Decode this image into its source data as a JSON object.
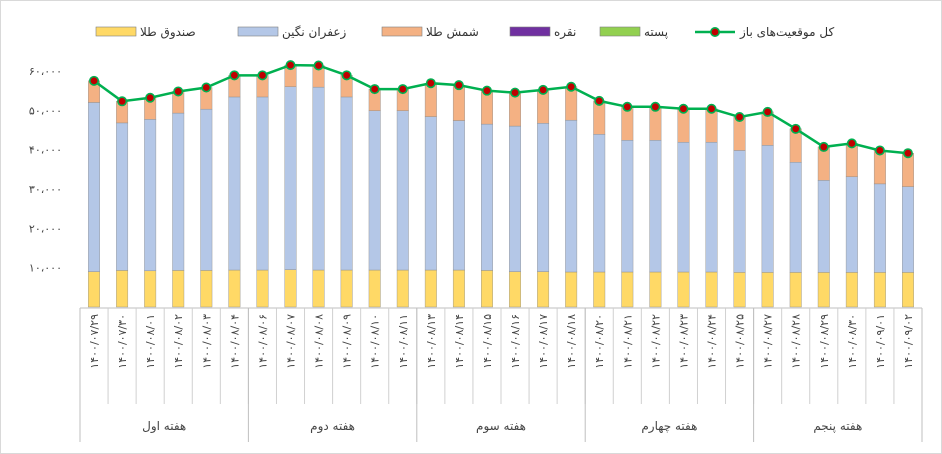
{
  "chart_data": {
    "type": "bar",
    "stacked": true,
    "title": "",
    "xlabel": "",
    "ylabel": "",
    "ylim": [
      0,
      60000
    ],
    "y_ticks": [
      "۱۰،۰۰۰",
      "۲۰،۰۰۰",
      "۳۰،۰۰۰",
      "۴۰،۰۰۰",
      "۵۰،۰۰۰",
      "۶۰،۰۰۰"
    ],
    "legend_position": "top",
    "categories": [
      "۱۴۰۰/۰۷/۲۹",
      "۱۴۰۰/۰۷/۳۰",
      "۱۴۰۰/۰۸/۰۱",
      "۱۴۰۰/۰۸/۰۲",
      "۱۴۰۰/۰۸/۰۳",
      "۱۴۰۰/۰۸/۰۴",
      "۱۴۰۰/۰۸/۰۶",
      "۱۴۰۰/۰۸/۰۷",
      "۱۴۰۰/۰۸/۰۸",
      "۱۴۰۰/۰۸/۰۹",
      "۱۴۰۰/۰۸/۱۰",
      "۱۴۰۰/۰۸/۱۱",
      "۱۴۰۰/۰۸/۱۳",
      "۱۴۰۰/۰۸/۱۴",
      "۱۴۰۰/۰۸/۱۵",
      "۱۴۰۰/۰۸/۱۶",
      "۱۴۰۰/۰۸/۱۷",
      "۱۴۰۰/۰۸/۱۸",
      "۱۴۰۰/۰۸/۲۰",
      "۱۴۰۰/۰۸/۲۱",
      "۱۴۰۰/۰۸/۲۲",
      "۱۴۰۰/۰۸/۲۳",
      "۱۴۰۰/۰۸/۲۴",
      "۱۴۰۰/۰۸/۲۵",
      "۱۴۰۰/۰۸/۲۷",
      "۱۴۰۰/۰۸/۲۸",
      "۱۴۰۰/۰۸/۲۹",
      "۱۴۰۰/۰۸/۳۰",
      "۱۴۰۰/۰۹/۰۱",
      "۱۴۰۰/۰۹/۰۲"
    ],
    "groups": [
      {
        "label": "هفته اول",
        "count": 6
      },
      {
        "label": "هفته دوم",
        "count": 6
      },
      {
        "label": "هفته سوم",
        "count": 6
      },
      {
        "label": "هفته چهارم",
        "count": 6
      },
      {
        "label": "هفته پنجم",
        "count": 6
      }
    ],
    "series": [
      {
        "name": "صندوق طلا",
        "color": "#ffd966",
        "values": [
          9000,
          9300,
          9200,
          9300,
          9300,
          9400,
          9400,
          9500,
          9400,
          9400,
          9400,
          9400,
          9400,
          9400,
          9300,
          9000,
          9000,
          8900,
          8900,
          8900,
          8900,
          8900,
          8900,
          8800,
          8800,
          8800,
          8800,
          8800,
          8800,
          8800
        ]
      },
      {
        "name": "زعفران نگین",
        "color": "#b4c7e7",
        "values": [
          43000,
          37500,
          38500,
          40000,
          41000,
          44000,
          44000,
          46500,
          46500,
          44000,
          40500,
          40500,
          39000,
          38000,
          37200,
          37000,
          37700,
          38600,
          35000,
          33500,
          33500,
          33000,
          33000,
          31000,
          32300,
          28000,
          23400,
          24300,
          22500,
          21800
        ]
      },
      {
        "name": "شمش طلا",
        "color": "#f4b183",
        "values": [
          5500,
          5500,
          5500,
          5500,
          5500,
          5500,
          5500,
          5500,
          5500,
          5500,
          5500,
          5500,
          8500,
          9000,
          8500,
          8500,
          8500,
          8500,
          8500,
          8500,
          8500,
          8500,
          8500,
          8500,
          8500,
          8500,
          8500,
          8500,
          8500,
          8500
        ]
      },
      {
        "name": "نقره",
        "color": "#7030a0",
        "values": [
          0,
          0,
          0,
          0,
          0,
          0,
          0,
          0,
          0,
          0,
          0,
          0,
          0,
          0,
          0,
          0,
          0,
          0,
          0,
          0,
          0,
          0,
          0,
          0,
          0,
          0,
          0,
          0,
          0,
          0
        ]
      },
      {
        "name": "پسته",
        "color": "#92d050",
        "values": [
          0,
          0,
          0,
          0,
          0,
          0,
          0,
          0,
          0,
          0,
          0,
          0,
          0,
          0,
          0,
          0,
          0,
          0,
          0,
          0,
          0,
          0,
          0,
          0,
          0,
          0,
          0,
          0,
          0,
          0
        ]
      }
    ],
    "line_series": {
      "name": "کل موقعیت‌های باز",
      "color": "#00b050",
      "marker_color": "#c00000",
      "values": [
        57500,
        52300,
        53200,
        54800,
        55800,
        58900,
        58900,
        61500,
        61400,
        58900,
        55400,
        55400,
        56900,
        56400,
        55000,
        54500,
        55200,
        56000,
        52400,
        50900,
        50900,
        50400,
        50400,
        48300,
        49600,
        45300,
        40700,
        41600,
        39800,
        39100
      ]
    }
  }
}
